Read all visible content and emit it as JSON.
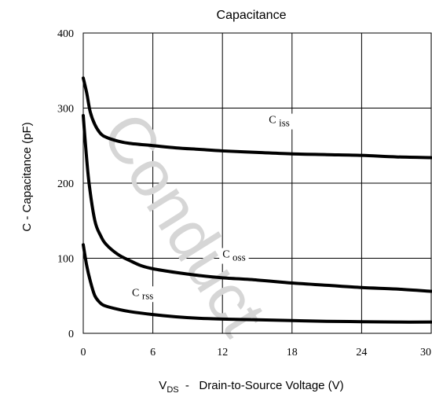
{
  "watermark": "Conduct",
  "chart_data": {
    "type": "line",
    "title": "Capacitance",
    "xlabel": {
      "main": "V",
      "sub": "DS",
      "rest": "  -   Drain-to-Source Voltage (V)"
    },
    "ylabel": "C  -  Capacitance (pF)",
    "xlim": [
      0,
      30
    ],
    "ylim": [
      0,
      400
    ],
    "xticks": [
      0,
      6,
      12,
      18,
      24,
      30
    ],
    "yticks": [
      0,
      100,
      200,
      300,
      400
    ],
    "grid": true,
    "series": [
      {
        "name": "C iss",
        "label_main": "C",
        "label_sub": "iss",
        "label_at": [
          16,
          280
        ],
        "x": [
          0,
          0.3,
          0.6,
          1,
          1.5,
          2,
          3,
          4,
          6,
          8,
          10,
          12,
          15,
          18,
          21,
          24,
          27,
          30
        ],
        "values": [
          340,
          320,
          295,
          278,
          266,
          261,
          256,
          253,
          250,
          247,
          245,
          243,
          241,
          239,
          238,
          237,
          235,
          234
        ]
      },
      {
        "name": "C oss",
        "label_main": "C",
        "label_sub": "oss",
        "label_at": [
          12,
          101
        ],
        "x": [
          0,
          0.2,
          0.5,
          1,
          1.5,
          2,
          3,
          4,
          5,
          6,
          8,
          10,
          12,
          15,
          18,
          21,
          24,
          27,
          30
        ],
        "values": [
          290,
          250,
          200,
          150,
          130,
          118,
          105,
          97,
          90,
          86,
          81,
          77,
          74,
          71,
          67,
          64,
          61,
          59,
          56
        ]
      },
      {
        "name": "C rss",
        "label_main": "C",
        "label_sub": "rss",
        "label_at": [
          4.2,
          50
        ],
        "x": [
          0,
          0.3,
          0.6,
          1,
          1.5,
          2,
          3,
          4,
          6,
          8,
          10,
          12,
          15,
          18,
          21,
          24,
          27,
          30
        ],
        "values": [
          118,
          90,
          70,
          50,
          40,
          36,
          32,
          29,
          25,
          22,
          20,
          19,
          18,
          17,
          16,
          15.5,
          15,
          15
        ]
      }
    ]
  }
}
